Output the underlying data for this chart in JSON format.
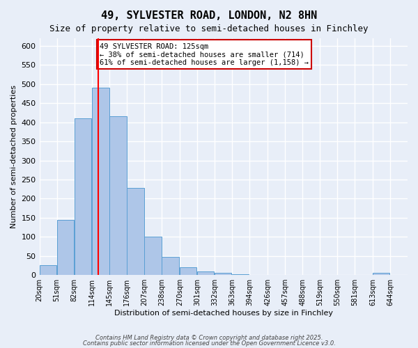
{
  "title": "49, SYLVESTER ROAD, LONDON, N2 8HN",
  "subtitle": "Size of property relative to semi-detached houses in Finchley",
  "xlabel": "Distribution of semi-detached houses by size in Finchley",
  "ylabel": "Number of semi-detached properties",
  "bins": [
    20,
    51,
    82,
    114,
    145,
    176,
    207,
    238,
    270,
    301,
    332,
    363,
    394,
    426,
    457,
    488,
    519,
    550,
    581,
    613,
    644
  ],
  "counts": [
    25,
    145,
    410,
    490,
    415,
    228,
    100,
    47,
    20,
    10,
    5,
    3,
    0,
    0,
    0,
    0,
    0,
    0,
    0,
    5,
    0
  ],
  "bar_color": "#aec6e8",
  "bar_edge_color": "#5a9fd4",
  "background_color": "#e8eef8",
  "grid_color": "#ffffff",
  "red_line_x": 125,
  "annotation_title": "49 SYLVESTER ROAD: 125sqm",
  "annotation_line1": "← 38% of semi-detached houses are smaller (714)",
  "annotation_line2": "61% of semi-detached houses are larger (1,158) →",
  "annotation_box_color": "#ffffff",
  "annotation_box_edge": "#cc0000",
  "tick_labels": [
    "20sqm",
    "51sqm",
    "82sqm",
    "114sqm",
    "145sqm",
    "176sqm",
    "207sqm",
    "238sqm",
    "270sqm",
    "301sqm",
    "332sqm",
    "363sqm",
    "394sqm",
    "426sqm",
    "457sqm",
    "488sqm",
    "519sqm",
    "550sqm",
    "581sqm",
    "613sqm",
    "644sqm"
  ],
  "ylim": [
    0,
    620
  ],
  "yticks": [
    0,
    50,
    100,
    150,
    200,
    250,
    300,
    350,
    400,
    450,
    500,
    550,
    600
  ],
  "footer_line1": "Contains HM Land Registry data © Crown copyright and database right 2025.",
  "footer_line2": "Contains public sector information licensed under the Open Government Licence v3.0."
}
